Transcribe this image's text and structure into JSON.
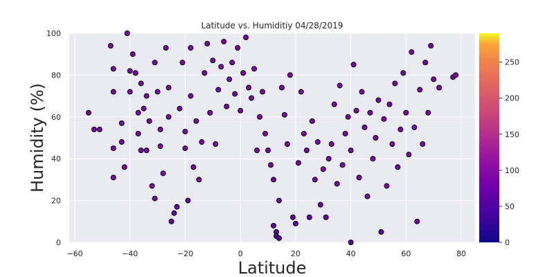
{
  "chart_data": {
    "type": "scatter",
    "title": "Latitude vs. Humiditiy 04/28/2019",
    "xlabel": "Latitude",
    "ylabel": "Humidity (%)",
    "xlim": [
      -62,
      85
    ],
    "ylim": [
      0,
      100
    ],
    "xticks": [
      -60,
      -40,
      -20,
      0,
      20,
      40,
      60,
      80
    ],
    "yticks": [
      0,
      20,
      40,
      60,
      80,
      100
    ],
    "grid": true,
    "background": "#eaeaf2",
    "marker_edge": "#000000",
    "colorbar": {
      "colormap": "plasma",
      "range": [
        0,
        290
      ],
      "ticks": [
        0,
        50,
        100,
        150,
        200,
        250
      ]
    },
    "colors": {
      "purple": "#7a0cab",
      "dark_violet": "#4f049c",
      "indigo": "#2e0694",
      "deep_blue": "#200690"
    },
    "points": [
      [
        -55,
        62,
        90
      ],
      [
        -53,
        54,
        90
      ],
      [
        -51,
        54,
        90
      ],
      [
        -47,
        94,
        90
      ],
      [
        -46,
        83,
        90
      ],
      [
        -46,
        72,
        90
      ],
      [
        -46,
        45,
        90
      ],
      [
        -46,
        31,
        90
      ],
      [
        -43,
        57,
        90
      ],
      [
        -43,
        48,
        90
      ],
      [
        -42,
        36,
        90
      ],
      [
        -41,
        100,
        90
      ],
      [
        -40,
        82,
        90
      ],
      [
        -40,
        72,
        90
      ],
      [
        -39,
        90,
        90
      ],
      [
        -38,
        81,
        90
      ],
      [
        -37,
        62,
        90
      ],
      [
        -37,
        52,
        90
      ],
      [
        -36,
        44,
        90
      ],
      [
        -36,
        76,
        90
      ],
      [
        -35,
        64,
        90
      ],
      [
        -34,
        70,
        90
      ],
      [
        -34,
        44,
        90
      ],
      [
        -33,
        58,
        90
      ],
      [
        -32,
        27,
        90
      ],
      [
        -31,
        21,
        90
      ],
      [
        -31,
        86,
        90
      ],
      [
        -30,
        72,
        90
      ],
      [
        -29,
        54,
        90
      ],
      [
        -29,
        46,
        90
      ],
      [
        -28,
        33,
        90
      ],
      [
        -27,
        93,
        90
      ],
      [
        -26,
        74,
        90
      ],
      [
        -26,
        60,
        90
      ],
      [
        -25,
        10,
        70
      ],
      [
        -24,
        14,
        70
      ],
      [
        -23,
        17,
        70
      ],
      [
        -22,
        64,
        90
      ],
      [
        -21,
        86,
        90
      ],
      [
        -20,
        53,
        90
      ],
      [
        -20,
        45,
        90
      ],
      [
        -19,
        20,
        70
      ],
      [
        -18,
        93,
        90
      ],
      [
        -18,
        70,
        90
      ],
      [
        -17,
        36,
        90
      ],
      [
        -16,
        58,
        90
      ],
      [
        -15,
        30,
        90
      ],
      [
        -14,
        48,
        90
      ],
      [
        -13,
        81,
        90
      ],
      [
        -12,
        95,
        90
      ],
      [
        -11,
        62,
        90
      ],
      [
        -10,
        87,
        90
      ],
      [
        -9,
        47,
        90
      ],
      [
        -8,
        73,
        90
      ],
      [
        -7,
        84,
        90
      ],
      [
        -6,
        96,
        90
      ],
      [
        -5,
        65,
        90
      ],
      [
        -4,
        78,
        90
      ],
      [
        -3,
        86,
        90
      ],
      [
        -2,
        71,
        90
      ],
      [
        -1,
        93,
        90
      ],
      [
        0,
        63,
        90
      ],
      [
        1,
        81,
        90
      ],
      [
        2,
        98,
        90
      ],
      [
        3,
        74,
        90
      ],
      [
        4,
        69,
        90
      ],
      [
        5,
        83,
        90
      ],
      [
        6,
        44,
        90
      ],
      [
        7,
        60,
        90
      ],
      [
        8,
        72,
        90
      ],
      [
        9,
        52,
        90
      ],
      [
        10,
        44,
        90
      ],
      [
        11,
        37,
        90
      ],
      [
        12,
        30,
        80
      ],
      [
        12,
        8,
        60
      ],
      [
        13,
        5,
        60
      ],
      [
        13,
        3,
        60
      ],
      [
        14,
        2,
        60
      ],
      [
        14,
        20,
        80
      ],
      [
        15,
        74,
        90
      ],
      [
        16,
        61,
        90
      ],
      [
        17,
        47,
        90
      ],
      [
        18,
        80,
        90
      ],
      [
        19,
        12,
        70
      ],
      [
        20,
        9,
        70
      ],
      [
        21,
        38,
        90
      ],
      [
        22,
        72,
        90
      ],
      [
        23,
        52,
        90
      ],
      [
        24,
        44,
        90
      ],
      [
        25,
        12,
        70
      ],
      [
        26,
        58,
        90
      ],
      [
        27,
        30,
        90
      ],
      [
        28,
        48,
        90
      ],
      [
        29,
        18,
        80
      ],
      [
        30,
        35,
        90
      ],
      [
        31,
        12,
        70
      ],
      [
        32,
        40,
        90
      ],
      [
        33,
        47,
        90
      ],
      [
        34,
        66,
        90
      ],
      [
        35,
        28,
        90
      ],
      [
        36,
        75,
        90
      ],
      [
        37,
        37,
        90
      ],
      [
        38,
        52,
        90
      ],
      [
        39,
        60,
        90
      ],
      [
        40,
        44,
        90
      ],
      [
        40,
        0,
        60
      ],
      [
        41,
        85,
        90
      ],
      [
        42,
        63,
        90
      ],
      [
        43,
        31,
        90
      ],
      [
        44,
        72,
        90
      ],
      [
        45,
        55,
        90
      ],
      [
        46,
        22,
        90
      ],
      [
        47,
        62,
        90
      ],
      [
        48,
        40,
        90
      ],
      [
        49,
        50,
        90
      ],
      [
        50,
        68,
        90
      ],
      [
        51,
        5,
        70
      ],
      [
        52,
        59,
        90
      ],
      [
        53,
        27,
        90
      ],
      [
        54,
        66,
        90
      ],
      [
        55,
        47,
        90
      ],
      [
        56,
        76,
        90
      ],
      [
        57,
        36,
        90
      ],
      [
        58,
        54,
        90
      ],
      [
        59,
        81,
        90
      ],
      [
        60,
        62,
        90
      ],
      [
        61,
        42,
        90
      ],
      [
        62,
        91,
        90
      ],
      [
        63,
        55,
        90
      ],
      [
        64,
        10,
        80
      ],
      [
        65,
        73,
        90
      ],
      [
        66,
        47,
        90
      ],
      [
        67,
        86,
        90
      ],
      [
        68,
        62,
        90
      ],
      [
        69,
        94,
        90
      ],
      [
        70,
        78,
        90
      ],
      [
        72,
        74,
        90
      ],
      [
        77,
        79,
        90
      ],
      [
        78,
        80,
        90
      ]
    ]
  }
}
